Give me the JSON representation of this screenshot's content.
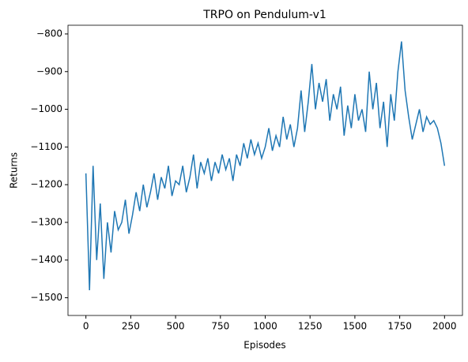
{
  "chart_data": {
    "type": "line",
    "title": "TRPO on Pendulum-v1",
    "x_label": "Episodes",
    "y_label": "Returns",
    "x": [
      0,
      20,
      40,
      60,
      80,
      100,
      120,
      140,
      160,
      180,
      200,
      220,
      240,
      260,
      280,
      300,
      320,
      340,
      360,
      380,
      400,
      420,
      440,
      460,
      480,
      500,
      520,
      540,
      560,
      580,
      600,
      620,
      640,
      660,
      680,
      700,
      720,
      740,
      760,
      780,
      800,
      820,
      840,
      860,
      880,
      900,
      920,
      940,
      960,
      980,
      1000,
      1020,
      1040,
      1060,
      1080,
      1100,
      1120,
      1140,
      1160,
      1180,
      1200,
      1220,
      1240,
      1260,
      1280,
      1300,
      1320,
      1340,
      1360,
      1380,
      1400,
      1420,
      1440,
      1460,
      1480,
      1500,
      1520,
      1540,
      1560,
      1580,
      1600,
      1620,
      1640,
      1660,
      1680,
      1700,
      1720,
      1740,
      1760,
      1780,
      1800,
      1820,
      1840,
      1860,
      1880,
      1900,
      1920,
      1940,
      1960,
      1980,
      2000
    ],
    "series": [
      {
        "name": "Returns",
        "color": "#1f77b4",
        "values": [
          -1170,
          -1480,
          -1150,
          -1400,
          -1250,
          -1450,
          -1300,
          -1380,
          -1270,
          -1320,
          -1300,
          -1240,
          -1330,
          -1280,
          -1220,
          -1270,
          -1200,
          -1260,
          -1220,
          -1170,
          -1240,
          -1180,
          -1210,
          -1150,
          -1230,
          -1190,
          -1200,
          -1150,
          -1220,
          -1180,
          -1120,
          -1210,
          -1140,
          -1170,
          -1130,
          -1190,
          -1140,
          -1170,
          -1120,
          -1160,
          -1130,
          -1190,
          -1120,
          -1150,
          -1090,
          -1130,
          -1080,
          -1120,
          -1090,
          -1130,
          -1100,
          -1050,
          -1110,
          -1070,
          -1100,
          -1020,
          -1080,
          -1040,
          -1100,
          -1050,
          -950,
          -1060,
          -980,
          -880,
          -1000,
          -930,
          -980,
          -920,
          -1030,
          -960,
          -1000,
          -940,
          -1070,
          -990,
          -1050,
          -960,
          -1030,
          -1000,
          -1060,
          -900,
          -1000,
          -930,
          -1050,
          -980,
          -1100,
          -960,
          -1030,
          -900,
          -820,
          -950,
          -1020,
          -1080,
          -1040,
          -1000,
          -1060,
          -1020,
          -1040,
          -1030,
          -1050,
          -1090,
          -1150
        ]
      }
    ],
    "xlim": [
      -100,
      2100
    ],
    "xticks": [
      0,
      250,
      500,
      750,
      1000,
      1250,
      1500,
      1750,
      2000
    ],
    "ylim": [
      -1547,
      -777
    ],
    "yticks": [
      {
        "value": -1500,
        "label": "−1500"
      },
      {
        "value": -1400,
        "label": "−1400"
      },
      {
        "value": -1300,
        "label": "−1300"
      },
      {
        "value": -1200,
        "label": "−1200"
      },
      {
        "value": -1100,
        "label": "−1100"
      },
      {
        "value": -1000,
        "label": "−1000"
      },
      {
        "value": -900,
        "label": "−900"
      },
      {
        "value": -800,
        "label": "−800"
      }
    ],
    "grid": false
  }
}
